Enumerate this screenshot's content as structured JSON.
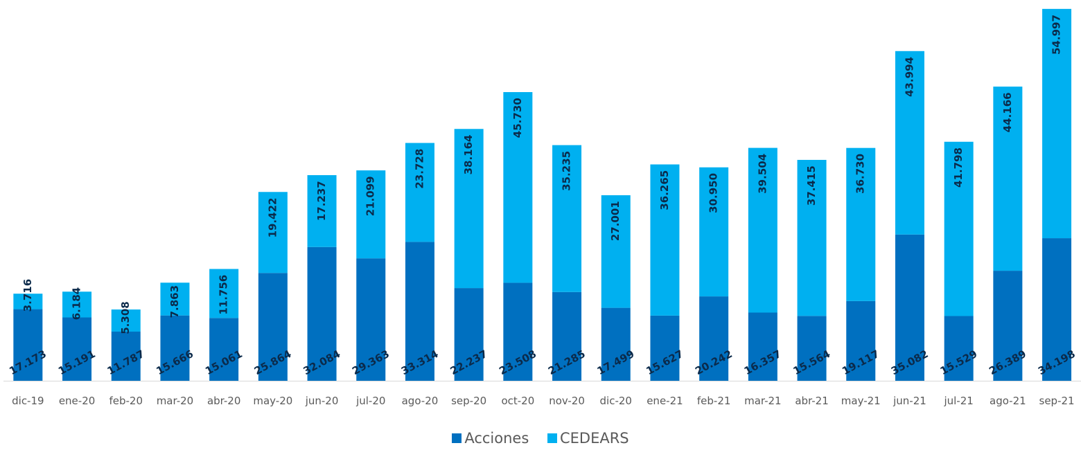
{
  "chart_data": {
    "type": "bar",
    "stacked": true,
    "categories": [
      "dic-19",
      "ene-20",
      "feb-20",
      "mar-20",
      "abr-20",
      "may-20",
      "jun-20",
      "jul-20",
      "ago-20",
      "sep-20",
      "oct-20",
      "nov-20",
      "dic-20",
      "ene-21",
      "feb-21",
      "mar-21",
      "abr-21",
      "may-21",
      "jun-21",
      "jul-21",
      "ago-21",
      "sep-21"
    ],
    "series": [
      {
        "name": "Acciones",
        "color": "#0070c0",
        "values": [
          17173,
          15191,
          11787,
          15666,
          15061,
          25864,
          32084,
          29363,
          33314,
          22237,
          23508,
          21285,
          17499,
          15627,
          20242,
          16357,
          15564,
          19117,
          35082,
          15529,
          26389,
          34198
        ],
        "labels": [
          "17.173",
          "15.191",
          "11.787",
          "15.666",
          "15.061",
          "25.864",
          "32.084",
          "29.363",
          "33.314",
          "22.237",
          "23.508",
          "21.285",
          "17.499",
          "15.627",
          "20.242",
          "16.357",
          "15.564",
          "19.117",
          "35.082",
          "15.529",
          "26.389",
          "34.198"
        ]
      },
      {
        "name": "CEDEARS",
        "color": "#00b0f0",
        "values": [
          3716,
          6184,
          5308,
          7863,
          11756,
          19422,
          17237,
          21099,
          23728,
          38164,
          45730,
          35235,
          27001,
          36265,
          30950,
          39504,
          37415,
          36730,
          43994,
          41798,
          44166,
          54997
        ],
        "labels": [
          "3.716",
          "6.184",
          "5.308",
          "7.863",
          "11.756",
          "19.422",
          "17.237",
          "21.099",
          "23.728",
          "38.164",
          "45.730",
          "35.235",
          "27.001",
          "36.265",
          "30.950",
          "39.504",
          "37.415",
          "36.730",
          "43.994",
          "41.798",
          "44.166",
          "54.997"
        ]
      }
    ],
    "title": "",
    "xlabel": "",
    "ylabel": "",
    "ylim": [
      0,
      90000
    ],
    "grid": false,
    "legend_position": "bottom"
  }
}
